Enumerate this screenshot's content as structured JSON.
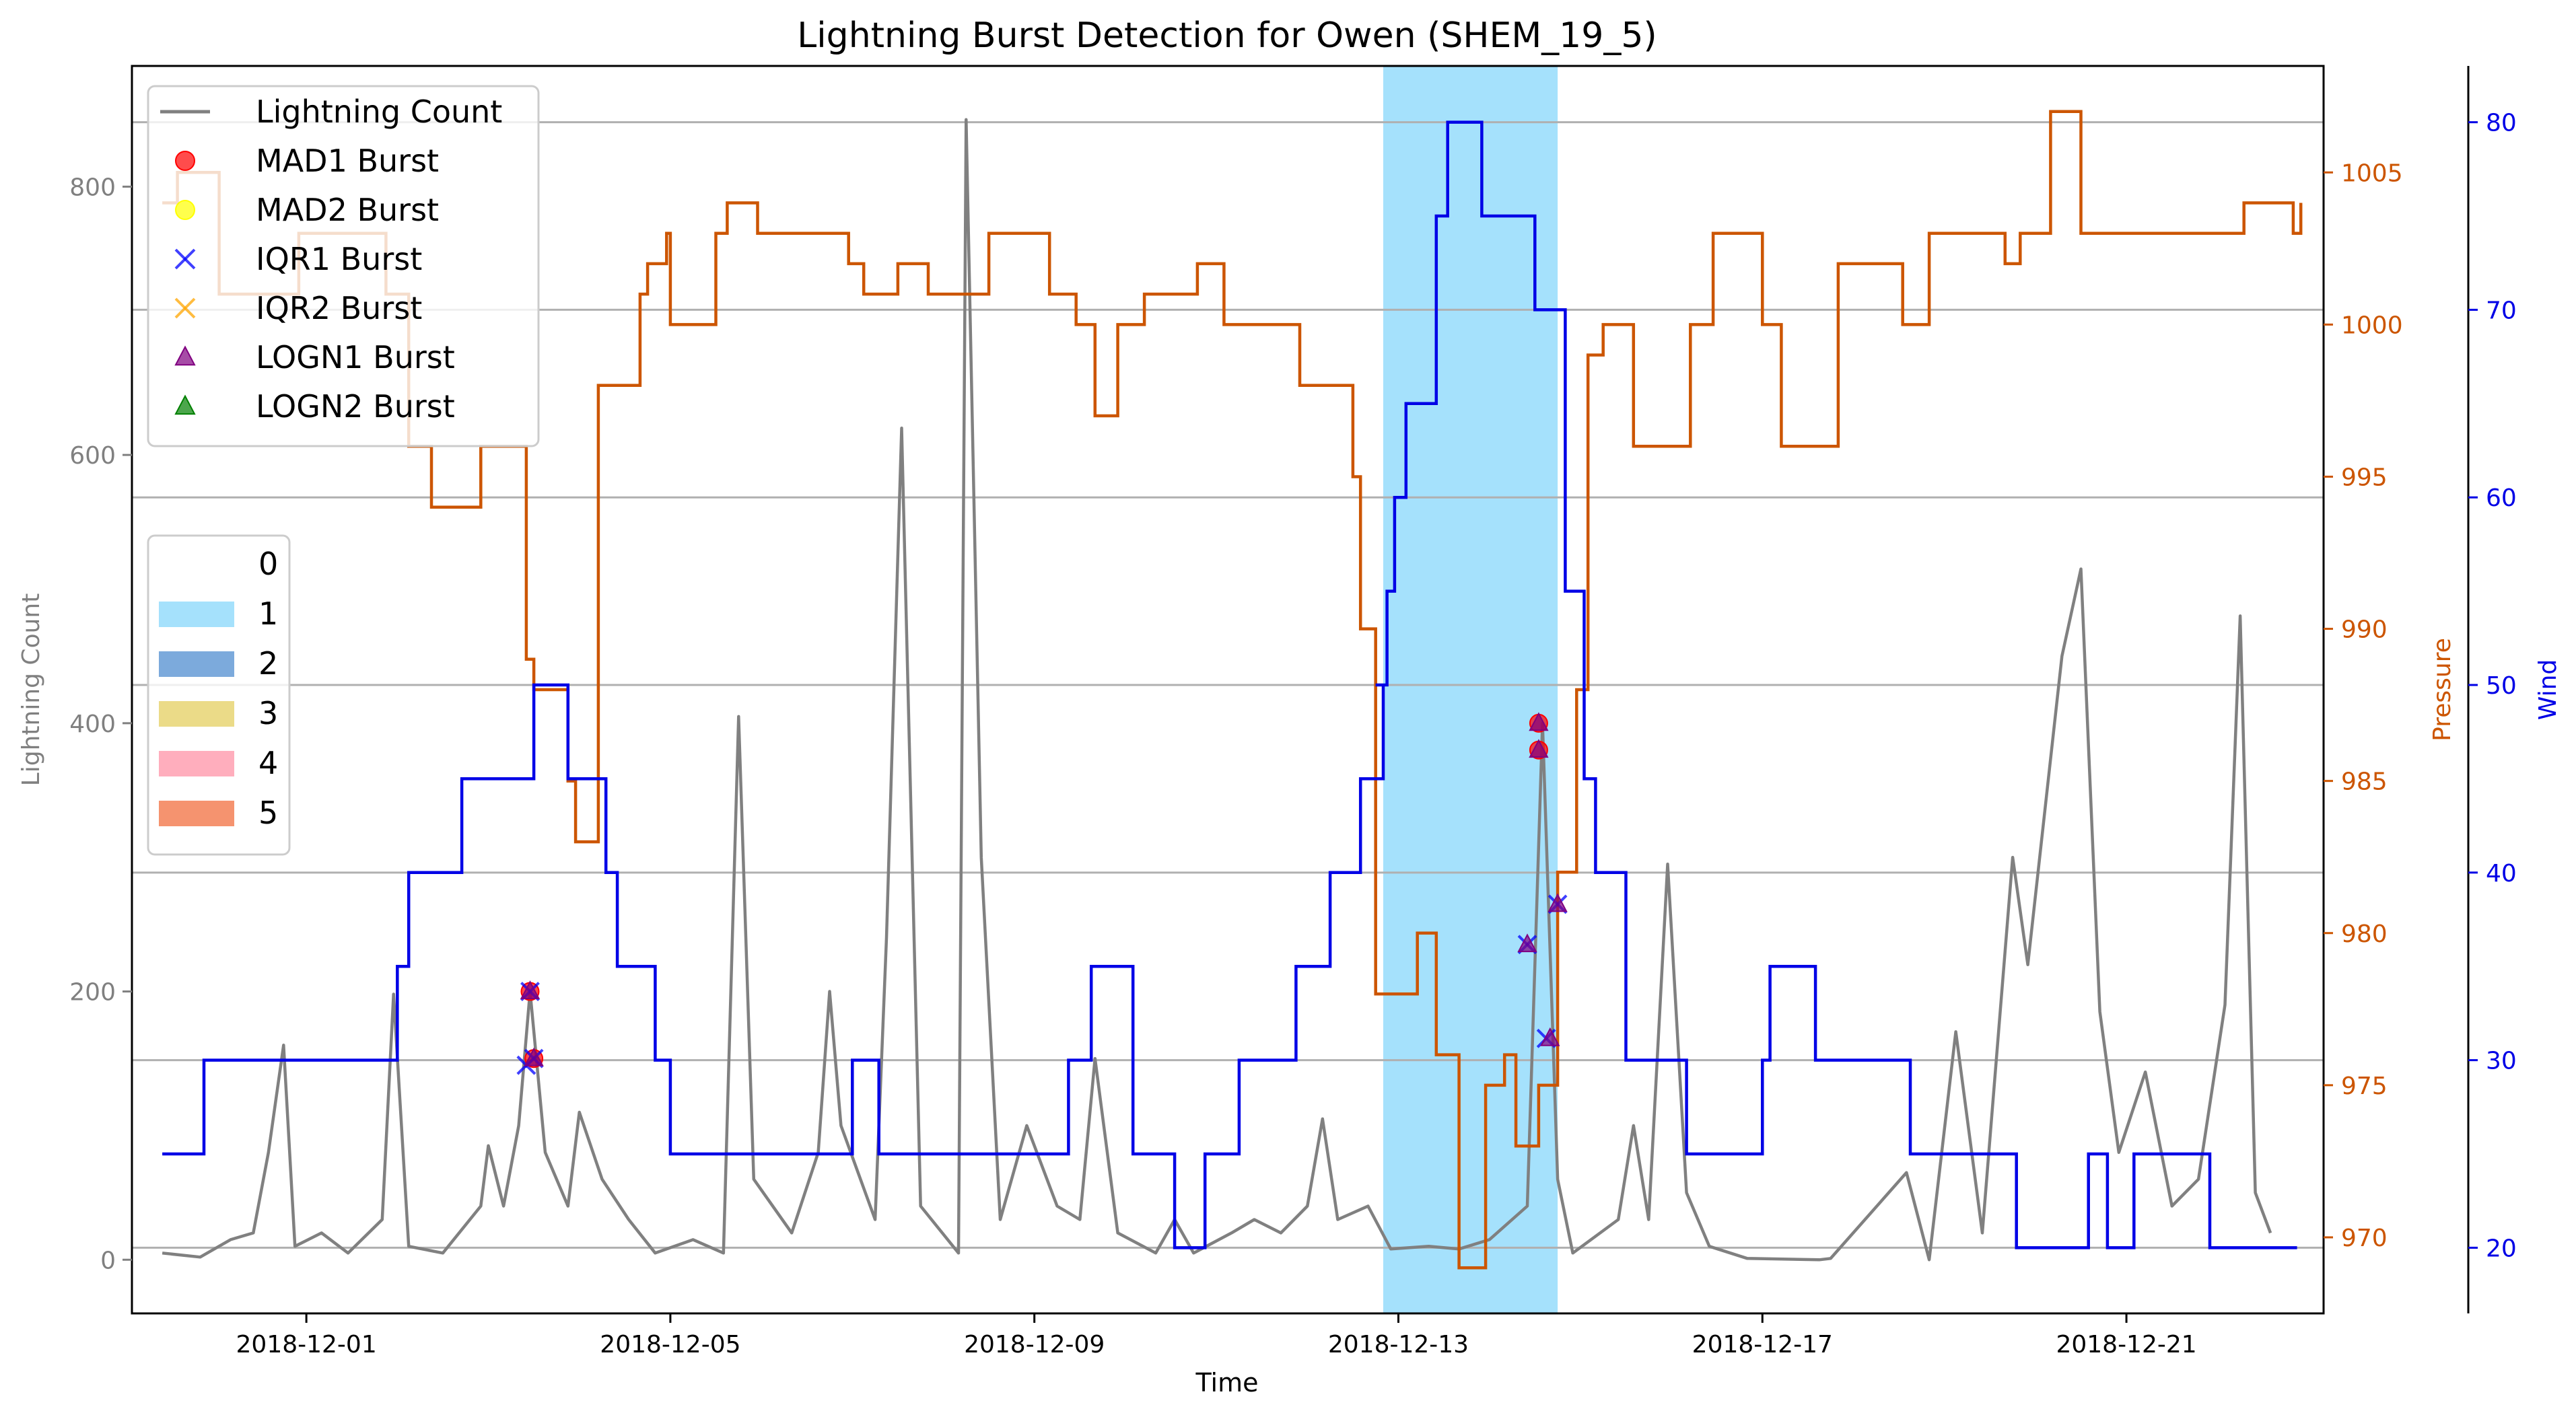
{
  "chart_data": {
    "type": "line",
    "title": "Lightning Burst Detection for Owen (SHEM_19_5)",
    "xlabel": "Time",
    "x_range": [
      "2018-11-29T02:00",
      "2018-12-23T04:00"
    ],
    "x_ticks": [
      "2018-12-01",
      "2018-12-05",
      "2018-12-09",
      "2018-12-13",
      "2018-12-17",
      "2018-12-21"
    ],
    "grid": "horizontal",
    "colors": {
      "lightning": "#808080",
      "pressure": "#cc5500",
      "wind": "#0000e6",
      "shade": "#8fd9fb",
      "mad1": "#ff0000",
      "mad2": "#ffff00",
      "iqr1": "#0000ff",
      "iqr2": "#ffa500",
      "logn1": "#800080",
      "logn2": "#008000"
    },
    "axes": {
      "left": {
        "label": "Lightning Count",
        "ylim": [
          -40,
          890
        ],
        "ticks": [
          0,
          200,
          400,
          600,
          800
        ]
      },
      "right1": {
        "label": "Pressure",
        "ylim": [
          967.5,
          1008.5
        ],
        "ticks": [
          970,
          975,
          980,
          985,
          990,
          995,
          1000,
          1005
        ]
      },
      "right2": {
        "label": "Wind",
        "ylim": [
          16.5,
          83
        ],
        "ticks": [
          20,
          30,
          40,
          50,
          60,
          70,
          80
        ]
      }
    },
    "shaded_regions": [
      {
        "start": "2018-12-12T20:00",
        "end": "2018-12-14T18:00",
        "category": "1"
      }
    ],
    "legend_series": [
      {
        "label": "Lightning Count",
        "marker": "line",
        "color": "#808080"
      },
      {
        "label": "MAD1 Burst",
        "marker": "circle",
        "color": "#ff0000"
      },
      {
        "label": "MAD2 Burst",
        "marker": "circle",
        "color": "#ffff00"
      },
      {
        "label": "IQR1 Burst",
        "marker": "x",
        "color": "#0000ff"
      },
      {
        "label": "IQR2 Burst",
        "marker": "x",
        "color": "#ffa500"
      },
      {
        "label": "LOGN1 Burst",
        "marker": "triangle",
        "color": "#800080"
      },
      {
        "label": "LOGN2 Burst",
        "marker": "triangle",
        "color": "#008000"
      }
    ],
    "legend_categories": [
      {
        "label": "0",
        "color": "#ffffff"
      },
      {
        "label": "1",
        "color": "#8fd9fb"
      },
      {
        "label": "2",
        "color": "#5b95d3"
      },
      {
        "label": "3",
        "color": "#e6d26a"
      },
      {
        "label": "4",
        "color": "#ff9aad"
      },
      {
        "label": "5",
        "color": "#f2784b"
      }
    ],
    "wind_series": [
      [
        "2018-11-29T10:00",
        25
      ],
      [
        "2018-11-29T21:00",
        30
      ],
      [
        "2018-12-02T00:00",
        35
      ],
      [
        "2018-12-02T03:00",
        40
      ],
      [
        "2018-12-02T17:00",
        45
      ],
      [
        "2018-12-03T12:00",
        50
      ],
      [
        "2018-12-03T21:00",
        45
      ],
      [
        "2018-12-04T07:00",
        40
      ],
      [
        "2018-12-04T10:00",
        35
      ],
      [
        "2018-12-04T20:00",
        30
      ],
      [
        "2018-12-05T00:00",
        25
      ],
      [
        "2018-12-07T00:00",
        30
      ],
      [
        "2018-12-07T07:00",
        25
      ],
      [
        "2018-12-09T09:00",
        30
      ],
      [
        "2018-12-09T15:00",
        35
      ],
      [
        "2018-12-10T02:00",
        25
      ],
      [
        "2018-12-10T13:00",
        20
      ],
      [
        "2018-12-10T21:00",
        25
      ],
      [
        "2018-12-11T06:00",
        30
      ],
      [
        "2018-12-11T21:00",
        35
      ],
      [
        "2018-12-12T06:00",
        40
      ],
      [
        "2018-12-12T14:00",
        45
      ],
      [
        "2018-12-12T20:00",
        50
      ],
      [
        "2018-12-12T18:00",
        50
      ],
      [
        "2018-12-12T21:00",
        55
      ],
      [
        "2018-12-12T23:00",
        60
      ],
      [
        "2018-12-13T02:00",
        65
      ],
      [
        "2018-12-13T10:00",
        75
      ],
      [
        "2018-12-13T13:00",
        80
      ],
      [
        "2018-12-13T22:00",
        75
      ],
      [
        "2018-12-14T12:00",
        70
      ],
      [
        "2018-12-14T20:00",
        55
      ],
      [
        "2018-12-15T01:00",
        45
      ],
      [
        "2018-12-15T04:00",
        40
      ],
      [
        "2018-12-15T12:00",
        30
      ],
      [
        "2018-12-16T04:00",
        25
      ],
      [
        "2018-12-17T00:00",
        30
      ],
      [
        "2018-12-17T02:00",
        35
      ],
      [
        "2018-12-17T14:00",
        30
      ],
      [
        "2018-12-18T15:00",
        25
      ],
      [
        "2018-12-19T19:00",
        20
      ],
      [
        "2018-12-20T14:00",
        25
      ],
      [
        "2018-12-20T19:00",
        20
      ],
      [
        "2018-12-21T02:00",
        25
      ],
      [
        "2018-12-21T22:00",
        20
      ],
      [
        "2018-12-22T21:00",
        20
      ]
    ],
    "pressure_series": [
      [
        "2018-11-29T10:00",
        1004
      ],
      [
        "2018-11-29T14:00",
        1005
      ],
      [
        "2018-11-30T01:00",
        1001
      ],
      [
        "2018-11-30T22:00",
        1003
      ],
      [
        "2018-12-01T21:00",
        1001
      ],
      [
        "2018-12-02T03:00",
        996
      ],
      [
        "2018-12-02T09:00",
        994
      ],
      [
        "2018-12-02T22:00",
        996
      ],
      [
        "2018-12-03T10:00",
        989
      ],
      [
        "2018-12-03T12:00",
        988
      ],
      [
        "2018-12-03T21:00",
        985
      ],
      [
        "2018-12-03T23:00",
        983
      ],
      [
        "2018-12-04T05:00",
        998
      ],
      [
        "2018-12-04T16:00",
        1001
      ],
      [
        "2018-12-04T18:00",
        1002
      ],
      [
        "2018-12-04T23:00",
        1003
      ],
      [
        "2018-12-05T00:00",
        1000
      ],
      [
        "2018-12-05T12:00",
        1003
      ],
      [
        "2018-12-05T15:00",
        1004
      ],
      [
        "2018-12-05T23:00",
        1003
      ],
      [
        "2018-12-06T04:00",
        1003
      ],
      [
        "2018-12-06T23:00",
        1002
      ],
      [
        "2018-12-07T03:00",
        1001
      ],
      [
        "2018-12-07T12:00",
        1002
      ],
      [
        "2018-12-07T20:00",
        1001
      ],
      [
        "2018-12-08T12:00",
        1003
      ],
      [
        "2018-12-08T21:00",
        1003
      ],
      [
        "2018-12-09T04:00",
        1001
      ],
      [
        "2018-12-09T11:00",
        1000
      ],
      [
        "2018-12-09T16:00",
        997
      ],
      [
        "2018-12-09T22:00",
        1000
      ],
      [
        "2018-12-10T05:00",
        1001
      ],
      [
        "2018-12-10T19:00",
        1002
      ],
      [
        "2018-12-11T02:00",
        1000
      ],
      [
        "2018-12-11T22:00",
        998
      ],
      [
        "2018-12-12T12:00",
        995
      ],
      [
        "2018-12-12T14:00",
        990
      ],
      [
        "2018-12-12T18:00",
        978
      ],
      [
        "2018-12-13T05:00",
        980
      ],
      [
        "2018-12-13T10:00",
        976
      ],
      [
        "2018-12-13T16:00",
        969
      ],
      [
        "2018-12-13T23:00",
        975
      ],
      [
        "2018-12-14T04:00",
        976
      ],
      [
        "2018-12-14T07:00",
        973
      ],
      [
        "2018-12-14T13:00",
        975
      ],
      [
        "2018-12-14T18:00",
        982
      ],
      [
        "2018-12-14T23:00",
        988
      ],
      [
        "2018-12-15T02:00",
        999
      ],
      [
        "2018-12-15T06:00",
        1000
      ],
      [
        "2018-12-15T14:00",
        996
      ],
      [
        "2018-12-16T05:00",
        1000
      ],
      [
        "2018-12-16T11:00",
        1003
      ],
      [
        "2018-12-17T00:00",
        1000
      ],
      [
        "2018-12-17T05:00",
        996
      ],
      [
        "2018-12-17T20:00",
        1002
      ],
      [
        "2018-12-18T13:00",
        1000
      ],
      [
        "2018-12-18T20:00",
        1003
      ],
      [
        "2018-12-19T16:00",
        1002
      ],
      [
        "2018-12-19T20:00",
        1003
      ],
      [
        "2018-12-20T04:00",
        1007
      ],
      [
        "2018-12-20T12:00",
        1003
      ],
      [
        "2018-12-21T06:00",
        1003
      ],
      [
        "2018-12-22T07:00",
        1004
      ],
      [
        "2018-12-22T20:00",
        1003
      ],
      [
        "2018-12-22T22:00",
        1004
      ]
    ],
    "lightning_series": [
      [
        "2018-11-29T10:00",
        5
      ],
      [
        "2018-11-29T20:00",
        2
      ],
      [
        "2018-11-30T04:00",
        15
      ],
      [
        "2018-11-30T10:00",
        20
      ],
      [
        "2018-11-30T14:00",
        80
      ],
      [
        "2018-11-30T18:00",
        160
      ],
      [
        "2018-11-30T21:00",
        10
      ],
      [
        "2018-12-01T04:00",
        20
      ],
      [
        "2018-12-01T11:00",
        5
      ],
      [
        "2018-12-01T20:00",
        30
      ],
      [
        "2018-12-01T23:00",
        198
      ],
      [
        "2018-12-02T03:00",
        10
      ],
      [
        "2018-12-02T12:00",
        5
      ],
      [
        "2018-12-02T22:00",
        40
      ],
      [
        "2018-12-03T00:00",
        85
      ],
      [
        "2018-12-03T04:00",
        40
      ],
      [
        "2018-12-03T08:00",
        100
      ],
      [
        "2018-12-03T11:00",
        200
      ],
      [
        "2018-12-03T15:00",
        80
      ],
      [
        "2018-12-03T21:00",
        40
      ],
      [
        "2018-12-04T00:00",
        110
      ],
      [
        "2018-12-04T06:00",
        60
      ],
      [
        "2018-12-04T13:00",
        30
      ],
      [
        "2018-12-04T20:00",
        5
      ],
      [
        "2018-12-05T06:00",
        15
      ],
      [
        "2018-12-05T14:00",
        5
      ],
      [
        "2018-12-05T18:00",
        405
      ],
      [
        "2018-12-05T22:00",
        60
      ],
      [
        "2018-12-06T08:00",
        20
      ],
      [
        "2018-12-06T15:00",
        80
      ],
      [
        "2018-12-06T18:00",
        200
      ],
      [
        "2018-12-06T21:00",
        100
      ],
      [
        "2018-12-07T06:00",
        30
      ],
      [
        "2018-12-07T09:00",
        240
      ],
      [
        "2018-12-07T13:00",
        620
      ],
      [
        "2018-12-07T18:00",
        40
      ],
      [
        "2018-12-08T04:00",
        5
      ],
      [
        "2018-12-08T06:00",
        850
      ],
      [
        "2018-12-08T10:00",
        300
      ],
      [
        "2018-12-08T15:00",
        30
      ],
      [
        "2018-12-08T22:00",
        100
      ],
      [
        "2018-12-09T06:00",
        40
      ],
      [
        "2018-12-09T12:00",
        30
      ],
      [
        "2018-12-09T16:00",
        150
      ],
      [
        "2018-12-09T22:00",
        20
      ],
      [
        "2018-12-10T08:00",
        5
      ],
      [
        "2018-12-10T13:00",
        30
      ],
      [
        "2018-12-10T18:00",
        5
      ],
      [
        "2018-12-11T04:00",
        20
      ],
      [
        "2018-12-11T10:00",
        30
      ],
      [
        "2018-12-11T17:00",
        20
      ],
      [
        "2018-12-12T00:00",
        40
      ],
      [
        "2018-12-12T04:00",
        105
      ],
      [
        "2018-12-12T08:00",
        30
      ],
      [
        "2018-12-12T16:00",
        40
      ],
      [
        "2018-12-12T22:00",
        8
      ],
      [
        "2018-12-13T08:00",
        10
      ],
      [
        "2018-12-13T16:00",
        8
      ],
      [
        "2018-12-14T00:00",
        15
      ],
      [
        "2018-12-14T10:00",
        40
      ],
      [
        "2018-12-14T14:00",
        400
      ],
      [
        "2018-12-14T18:00",
        60
      ],
      [
        "2018-12-14T22:00",
        5
      ],
      [
        "2018-12-15T10:00",
        30
      ],
      [
        "2018-12-15T14:00",
        100
      ],
      [
        "2018-12-15T18:00",
        30
      ],
      [
        "2018-12-15T23:00",
        295
      ],
      [
        "2018-12-16T04:00",
        50
      ],
      [
        "2018-12-16T10:00",
        10
      ],
      [
        "2018-12-16T20:00",
        1
      ],
      [
        "2018-12-17T15:00",
        0
      ],
      [
        "2018-12-17T18:00",
        1
      ],
      [
        "2018-12-18T14:00",
        65
      ],
      [
        "2018-12-18T20:00",
        0
      ],
      [
        "2018-12-19T03:00",
        170
      ],
      [
        "2018-12-19T10:00",
        20
      ],
      [
        "2018-12-19T18:00",
        300
      ],
      [
        "2018-12-19T22:00",
        220
      ],
      [
        "2018-12-20T07:00",
        450
      ],
      [
        "2018-12-20T12:00",
        515
      ],
      [
        "2018-12-20T17:00",
        185
      ],
      [
        "2018-12-20T22:00",
        80
      ],
      [
        "2018-12-21T05:00",
        140
      ],
      [
        "2018-12-21T12:00",
        40
      ],
      [
        "2018-12-21T19:00",
        60
      ],
      [
        "2018-12-22T02:00",
        190
      ],
      [
        "2018-12-22T06:00",
        480
      ],
      [
        "2018-12-22T10:00",
        50
      ],
      [
        "2018-12-22T14:00",
        20
      ]
    ],
    "burst_points": [
      {
        "x": "2018-12-03T10:00",
        "y": 145,
        "type": "iqr1"
      },
      {
        "x": "2018-12-03T12:00",
        "y": 150,
        "type": "mad1"
      },
      {
        "x": "2018-12-03T12:00",
        "y": 150,
        "type": "iqr1"
      },
      {
        "x": "2018-12-03T12:00",
        "y": 150,
        "type": "logn1"
      },
      {
        "x": "2018-12-03T11:00",
        "y": 200,
        "type": "mad1"
      },
      {
        "x": "2018-12-03T11:00",
        "y": 200,
        "type": "iqr1"
      },
      {
        "x": "2018-12-03T11:00",
        "y": 200,
        "type": "logn1"
      },
      {
        "x": "2018-12-14T10:00",
        "y": 235,
        "type": "iqr1"
      },
      {
        "x": "2018-12-14T10:00",
        "y": 235,
        "type": "logn1"
      },
      {
        "x": "2018-12-14T13:00",
        "y": 380,
        "type": "mad1"
      },
      {
        "x": "2018-12-14T13:00",
        "y": 380,
        "type": "logn1"
      },
      {
        "x": "2018-12-14T13:00",
        "y": 400,
        "type": "mad1"
      },
      {
        "x": "2018-12-14T13:00",
        "y": 400,
        "type": "logn1"
      },
      {
        "x": "2018-12-14T15:00",
        "y": 165,
        "type": "iqr1"
      },
      {
        "x": "2018-12-14T16:00",
        "y": 165,
        "type": "logn1"
      },
      {
        "x": "2018-12-14T18:00",
        "y": 265,
        "type": "iqr1"
      },
      {
        "x": "2018-12-14T18:00",
        "y": 265,
        "type": "logn1"
      }
    ]
  }
}
